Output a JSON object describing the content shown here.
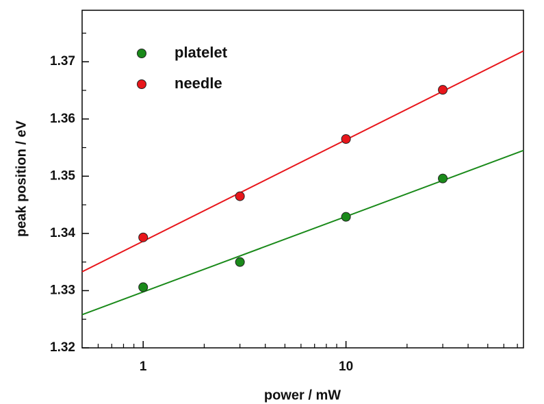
{
  "chart_data": {
    "type": "scatter",
    "x_label": "power / mW",
    "y_label": "peak position / eV",
    "xscale": "log",
    "xlim": [
      0.5,
      75
    ],
    "ylim": [
      1.32,
      1.379
    ],
    "xticks": [
      1,
      10
    ],
    "xminor_ticks": [
      0.6,
      0.7,
      0.8,
      0.9,
      2,
      3,
      4,
      5,
      6,
      7,
      8,
      9,
      20,
      30,
      40,
      50,
      60,
      70
    ],
    "yticks": [
      1.32,
      1.33,
      1.34,
      1.35,
      1.36,
      1.37
    ],
    "yminor_ticks": [
      1.325,
      1.335,
      1.345,
      1.355,
      1.365,
      1.375
    ],
    "series": [
      {
        "name": "platelet",
        "color": "#1a8a1a",
        "x": [
          1,
          3,
          10,
          30
        ],
        "values": [
          1.3306,
          1.335,
          1.3429,
          1.3496
        ],
        "fit": {
          "x": [
            0.5,
            75
          ],
          "values": [
            1.3258,
            1.3545
          ]
        }
      },
      {
        "name": "needle",
        "color": "#e8161b",
        "x": [
          1,
          3,
          10,
          30
        ],
        "values": [
          1.3393,
          1.3465,
          1.3565,
          1.3651
        ],
        "fit": {
          "x": [
            0.5,
            75
          ],
          "values": [
            1.3333,
            1.3719
          ]
        }
      }
    ]
  }
}
